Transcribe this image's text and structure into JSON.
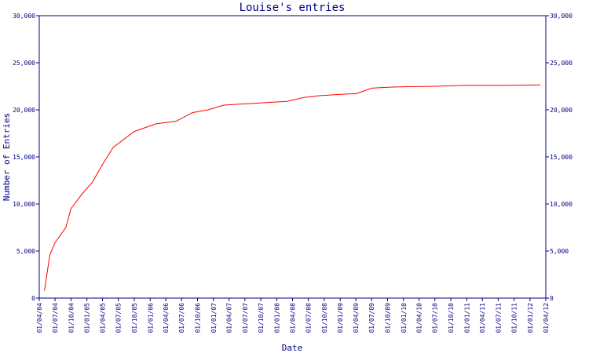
{
  "chart_data": {
    "type": "line",
    "title": "Louise's entries",
    "xlabel": "Date",
    "ylabel": "Number of Entries",
    "ylim": [
      0,
      30000
    ],
    "yticks": [
      0,
      5000,
      10000,
      15000,
      20000,
      25000,
      30000
    ],
    "ytick_labels": [
      "0",
      "5,000",
      "10,000",
      "15,000",
      "20,000",
      "25,000",
      "30,000"
    ],
    "xlim": [
      "01/04/04",
      "01/04/12"
    ],
    "xtick_labels": [
      "01/04/04",
      "01/07/04",
      "01/10/04",
      "01/01/05",
      "01/04/05",
      "01/07/05",
      "01/10/05",
      "01/01/06",
      "01/04/06",
      "01/07/06",
      "01/10/06",
      "01/01/07",
      "01/04/07",
      "01/07/07",
      "01/10/07",
      "01/01/08",
      "01/04/08",
      "01/07/08",
      "01/10/08",
      "01/01/09",
      "01/04/09",
      "01/07/09",
      "01/10/09",
      "01/01/10",
      "01/04/10",
      "01/07/10",
      "01/10/10",
      "01/01/11",
      "01/04/11",
      "01/07/11",
      "01/10/11",
      "01/01/12",
      "01/04/12"
    ],
    "grid": false,
    "legend": "none",
    "series": [
      {
        "color": "#ff0000",
        "x": [
          "01/05/04",
          "01/06/04",
          "01/07/04",
          "01/09/04",
          "01/10/04",
          "01/12/04",
          "01/02/05",
          "01/04/05",
          "01/06/05",
          "01/10/05",
          "01/02/06",
          "01/06/06",
          "01/09/06",
          "01/12/06",
          "01/03/07",
          "01/06/07",
          "01/09/07",
          "01/12/07",
          "01/03/08",
          "01/06/08",
          "01/09/08",
          "01/12/08",
          "01/03/09",
          "01/04/09",
          "01/07/09",
          "01/10/09",
          "01/01/10",
          "01/07/10",
          "01/01/11",
          "01/07/11",
          "01/03/12"
        ],
        "y": [
          800,
          4600,
          5900,
          7500,
          9500,
          11000,
          12300,
          14200,
          16000,
          17700,
          18500,
          18800,
          19700,
          20000,
          20500,
          20600,
          20700,
          20800,
          20900,
          21300,
          21500,
          21600,
          21700,
          21700,
          22300,
          22400,
          22450,
          22500,
          22600,
          22600,
          22650
        ]
      }
    ]
  }
}
